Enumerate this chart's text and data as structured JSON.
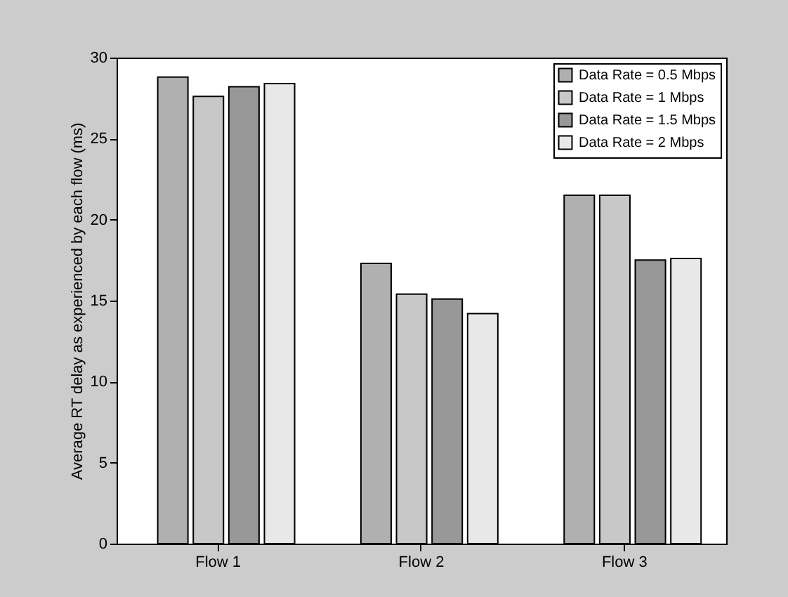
{
  "chart_data": {
    "type": "bar",
    "ylabel": "Average RT delay as experienced by each flow (ms)",
    "categories": [
      "Flow 1",
      "Flow 2",
      "Flow 3"
    ],
    "series": [
      {
        "name": "Data Rate = 0.5 Mbps",
        "color": "#b0b0b0",
        "values": [
          28.8,
          17.3,
          21.5
        ]
      },
      {
        "name": "Data Rate = 1 Mbps",
        "color": "#c8c8c8",
        "values": [
          27.6,
          15.4,
          21.5
        ]
      },
      {
        "name": "Data Rate = 1.5 Mbps",
        "color": "#989898",
        "values": [
          28.2,
          15.1,
          17.5
        ]
      },
      {
        "name": "Data Rate = 2 Mbps",
        "color": "#e8e8e8",
        "values": [
          28.4,
          14.2,
          17.6
        ]
      }
    ],
    "ylim": [
      0,
      30
    ],
    "yticks": [
      0,
      5,
      10,
      15,
      20,
      25,
      30
    ],
    "grid": false,
    "legend": "top right"
  }
}
